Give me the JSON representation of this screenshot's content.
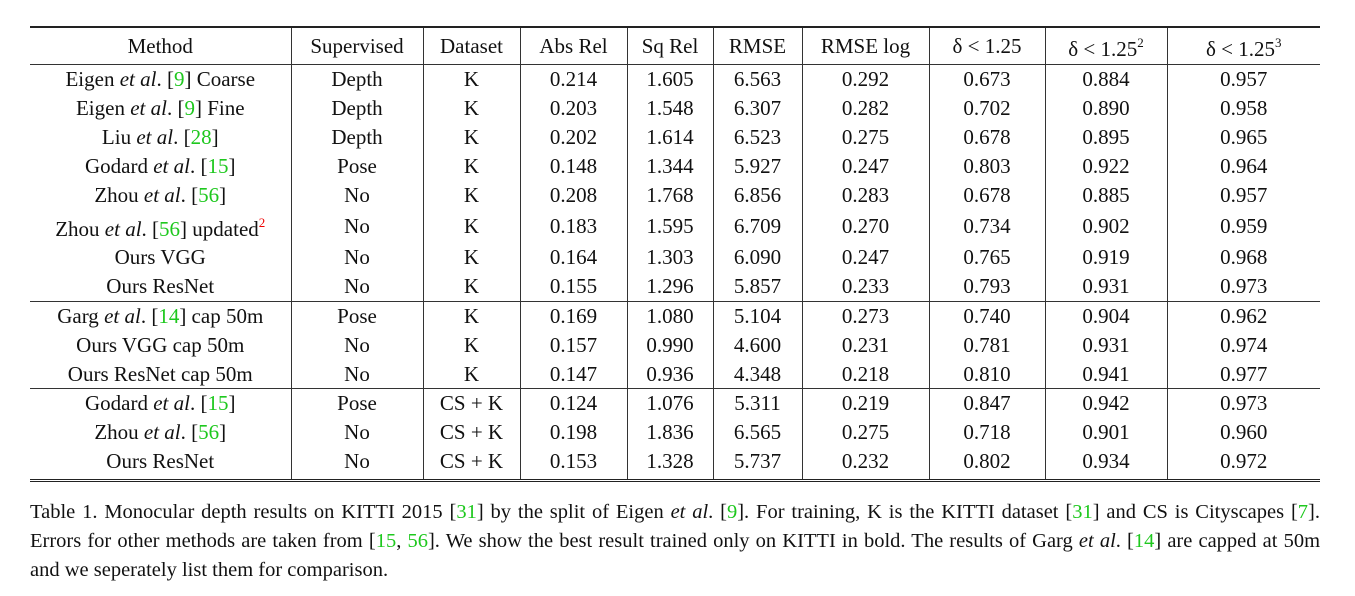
{
  "table": {
    "headers": [
      "Method",
      "Supervised",
      "Dataset",
      "Abs Rel",
      "Sq Rel",
      "RMSE",
      "RMSE log",
      "δ < 1.25",
      "δ < 1.25",
      "δ < 1.25"
    ],
    "header_superscripts": [
      "",
      "",
      "",
      "",
      "",
      "",
      "",
      "",
      "2",
      "3"
    ],
    "groups": [
      [
        {
          "method": {
            "pre": "Eigen ",
            "etal": "et al",
            "post_etal": ". [",
            "cite": "9",
            "post": "] Coarse",
            "sup": ""
          },
          "supervised": "Depth",
          "dataset": "K",
          "values": [
            "0.214",
            "1.605",
            "6.563",
            "0.292",
            "0.673",
            "0.884",
            "0.957"
          ],
          "bold": []
        },
        {
          "method": {
            "pre": "Eigen ",
            "etal": "et al",
            "post_etal": ". [",
            "cite": "9",
            "post": "] Fine",
            "sup": ""
          },
          "supervised": "Depth",
          "dataset": "K",
          "values": [
            "0.203",
            "1.548",
            "6.307",
            "0.282",
            "0.702",
            "0.890",
            "0.958"
          ],
          "bold": []
        },
        {
          "method": {
            "pre": "Liu ",
            "etal": "et al",
            "post_etal": ". [",
            "cite": "28",
            "post": "]",
            "sup": ""
          },
          "supervised": "Depth",
          "dataset": "K",
          "values": [
            "0.202",
            "1.614",
            "6.523",
            "0.275",
            "0.678",
            "0.895",
            "0.965"
          ],
          "bold": []
        },
        {
          "method": {
            "pre": "Godard ",
            "etal": "et al",
            "post_etal": ". [",
            "cite": "15",
            "post": "]",
            "sup": ""
          },
          "supervised": "Pose",
          "dataset": "K",
          "values": [
            "0.148",
            "1.344",
            "5.927",
            "0.247",
            "0.803",
            "0.922",
            "0.964"
          ],
          "bold": [
            0,
            4
          ]
        },
        {
          "method": {
            "pre": "Zhou ",
            "etal": "et al",
            "post_etal": ". [",
            "cite": "56",
            "post": "]",
            "sup": ""
          },
          "supervised": "No",
          "dataset": "K",
          "values": [
            "0.208",
            "1.768",
            "6.856",
            "0.283",
            "0.678",
            "0.885",
            "0.957"
          ],
          "bold": []
        },
        {
          "method": {
            "pre": "Zhou ",
            "etal": "et al",
            "post_etal": ". [",
            "cite": "56",
            "post": "] updated",
            "sup": "2"
          },
          "supervised": "No",
          "dataset": "K",
          "values": [
            "0.183",
            "1.595",
            "6.709",
            "0.270",
            "0.734",
            "0.902",
            "0.959"
          ],
          "bold": []
        },
        {
          "method": {
            "pre": "Ours VGG",
            "etal": "",
            "post_etal": "",
            "cite": "",
            "post": "",
            "sup": ""
          },
          "supervised": "No",
          "dataset": "K",
          "values": [
            "0.164",
            "1.303",
            "6.090",
            "0.247",
            "0.765",
            "0.919",
            "0.968"
          ],
          "bold": []
        },
        {
          "method": {
            "pre": "Ours ResNet",
            "etal": "",
            "post_etal": "",
            "cite": "",
            "post": "",
            "sup": ""
          },
          "supervised": "No",
          "dataset": "K",
          "values": [
            "0.155",
            "1.296",
            "5.857",
            "0.233",
            "0.793",
            "0.931",
            "0.973"
          ],
          "bold": [
            1,
            2,
            3,
            5,
            6
          ]
        }
      ],
      [
        {
          "method": {
            "pre": "Garg ",
            "etal": "et al",
            "post_etal": ". [",
            "cite": "14",
            "post": "] cap 50m",
            "sup": ""
          },
          "supervised": "Pose",
          "dataset": "K",
          "values": [
            "0.169",
            "1.080",
            "5.104",
            "0.273",
            "0.740",
            "0.904",
            "0.962"
          ],
          "bold": []
        },
        {
          "method": {
            "pre": "Ours VGG cap 50m",
            "etal": "",
            "post_etal": "",
            "cite": "",
            "post": "",
            "sup": ""
          },
          "supervised": "No",
          "dataset": "K",
          "values": [
            "0.157",
            "0.990",
            "4.600",
            "0.231",
            "0.781",
            "0.931",
            "0.974"
          ],
          "bold": []
        },
        {
          "method": {
            "pre": "Ours ResNet cap 50m",
            "etal": "",
            "post_etal": "",
            "cite": "",
            "post": "",
            "sup": ""
          },
          "supervised": "No",
          "dataset": "K",
          "values": [
            "0.147",
            "0.936",
            "4.348",
            "0.218",
            "0.810",
            "0.941",
            "0.977"
          ],
          "bold": [
            0,
            1,
            2,
            3,
            4,
            5,
            6
          ]
        }
      ],
      [
        {
          "method": {
            "pre": "Godard ",
            "etal": "et al",
            "post_etal": ". [",
            "cite": "15",
            "post": "]",
            "sup": ""
          },
          "supervised": "Pose",
          "dataset": "CS + K",
          "values": [
            "0.124",
            "1.076",
            "5.311",
            "0.219",
            "0.847",
            "0.942",
            "0.973"
          ],
          "bold": [
            0,
            1,
            2,
            3,
            4,
            5,
            6
          ]
        },
        {
          "method": {
            "pre": "Zhou ",
            "etal": "et al",
            "post_etal": ". [",
            "cite": "56",
            "post": "]",
            "sup": ""
          },
          "supervised": "No",
          "dataset": "CS + K",
          "values": [
            "0.198",
            "1.836",
            "6.565",
            "0.275",
            "0.718",
            "0.901",
            "0.960"
          ],
          "bold": []
        },
        {
          "method": {
            "pre": "Ours ResNet",
            "etal": "",
            "post_etal": "",
            "cite": "",
            "post": "",
            "sup": ""
          },
          "supervised": "No",
          "dataset": "CS + K",
          "values": [
            "0.153",
            "1.328",
            "5.737",
            "0.232",
            "0.802",
            "0.934",
            "0.972"
          ],
          "bold": []
        }
      ]
    ]
  },
  "caption": [
    {
      "t": "Table 1. Monocular depth results on KITTI 2015 ["
    },
    {
      "t": "31",
      "cite": true
    },
    {
      "t": "] by the split of Eigen "
    },
    {
      "t": "et al",
      "it": true
    },
    {
      "t": ". ["
    },
    {
      "t": "9",
      "cite": true
    },
    {
      "t": "]. For training, K is the KITTI dataset ["
    },
    {
      "t": "31",
      "cite": true
    },
    {
      "t": "] and CS is Cityscapes ["
    },
    {
      "t": "7",
      "cite": true
    },
    {
      "t": "]. Errors for other methods are taken from ["
    },
    {
      "t": "15",
      "cite": true
    },
    {
      "t": ", "
    },
    {
      "t": "56",
      "cite": true
    },
    {
      "t": "]. We show the best result trained only on KITTI in bold. The results of Garg "
    },
    {
      "t": "et al",
      "it": true
    },
    {
      "t": ". ["
    },
    {
      "t": "14",
      "cite": true
    },
    {
      "t": "] are capped at 50m and we seperately list them for comparison."
    }
  ],
  "colors": {
    "citation": "#1ec81e",
    "footnote": "#e00000",
    "text": "#111111"
  }
}
